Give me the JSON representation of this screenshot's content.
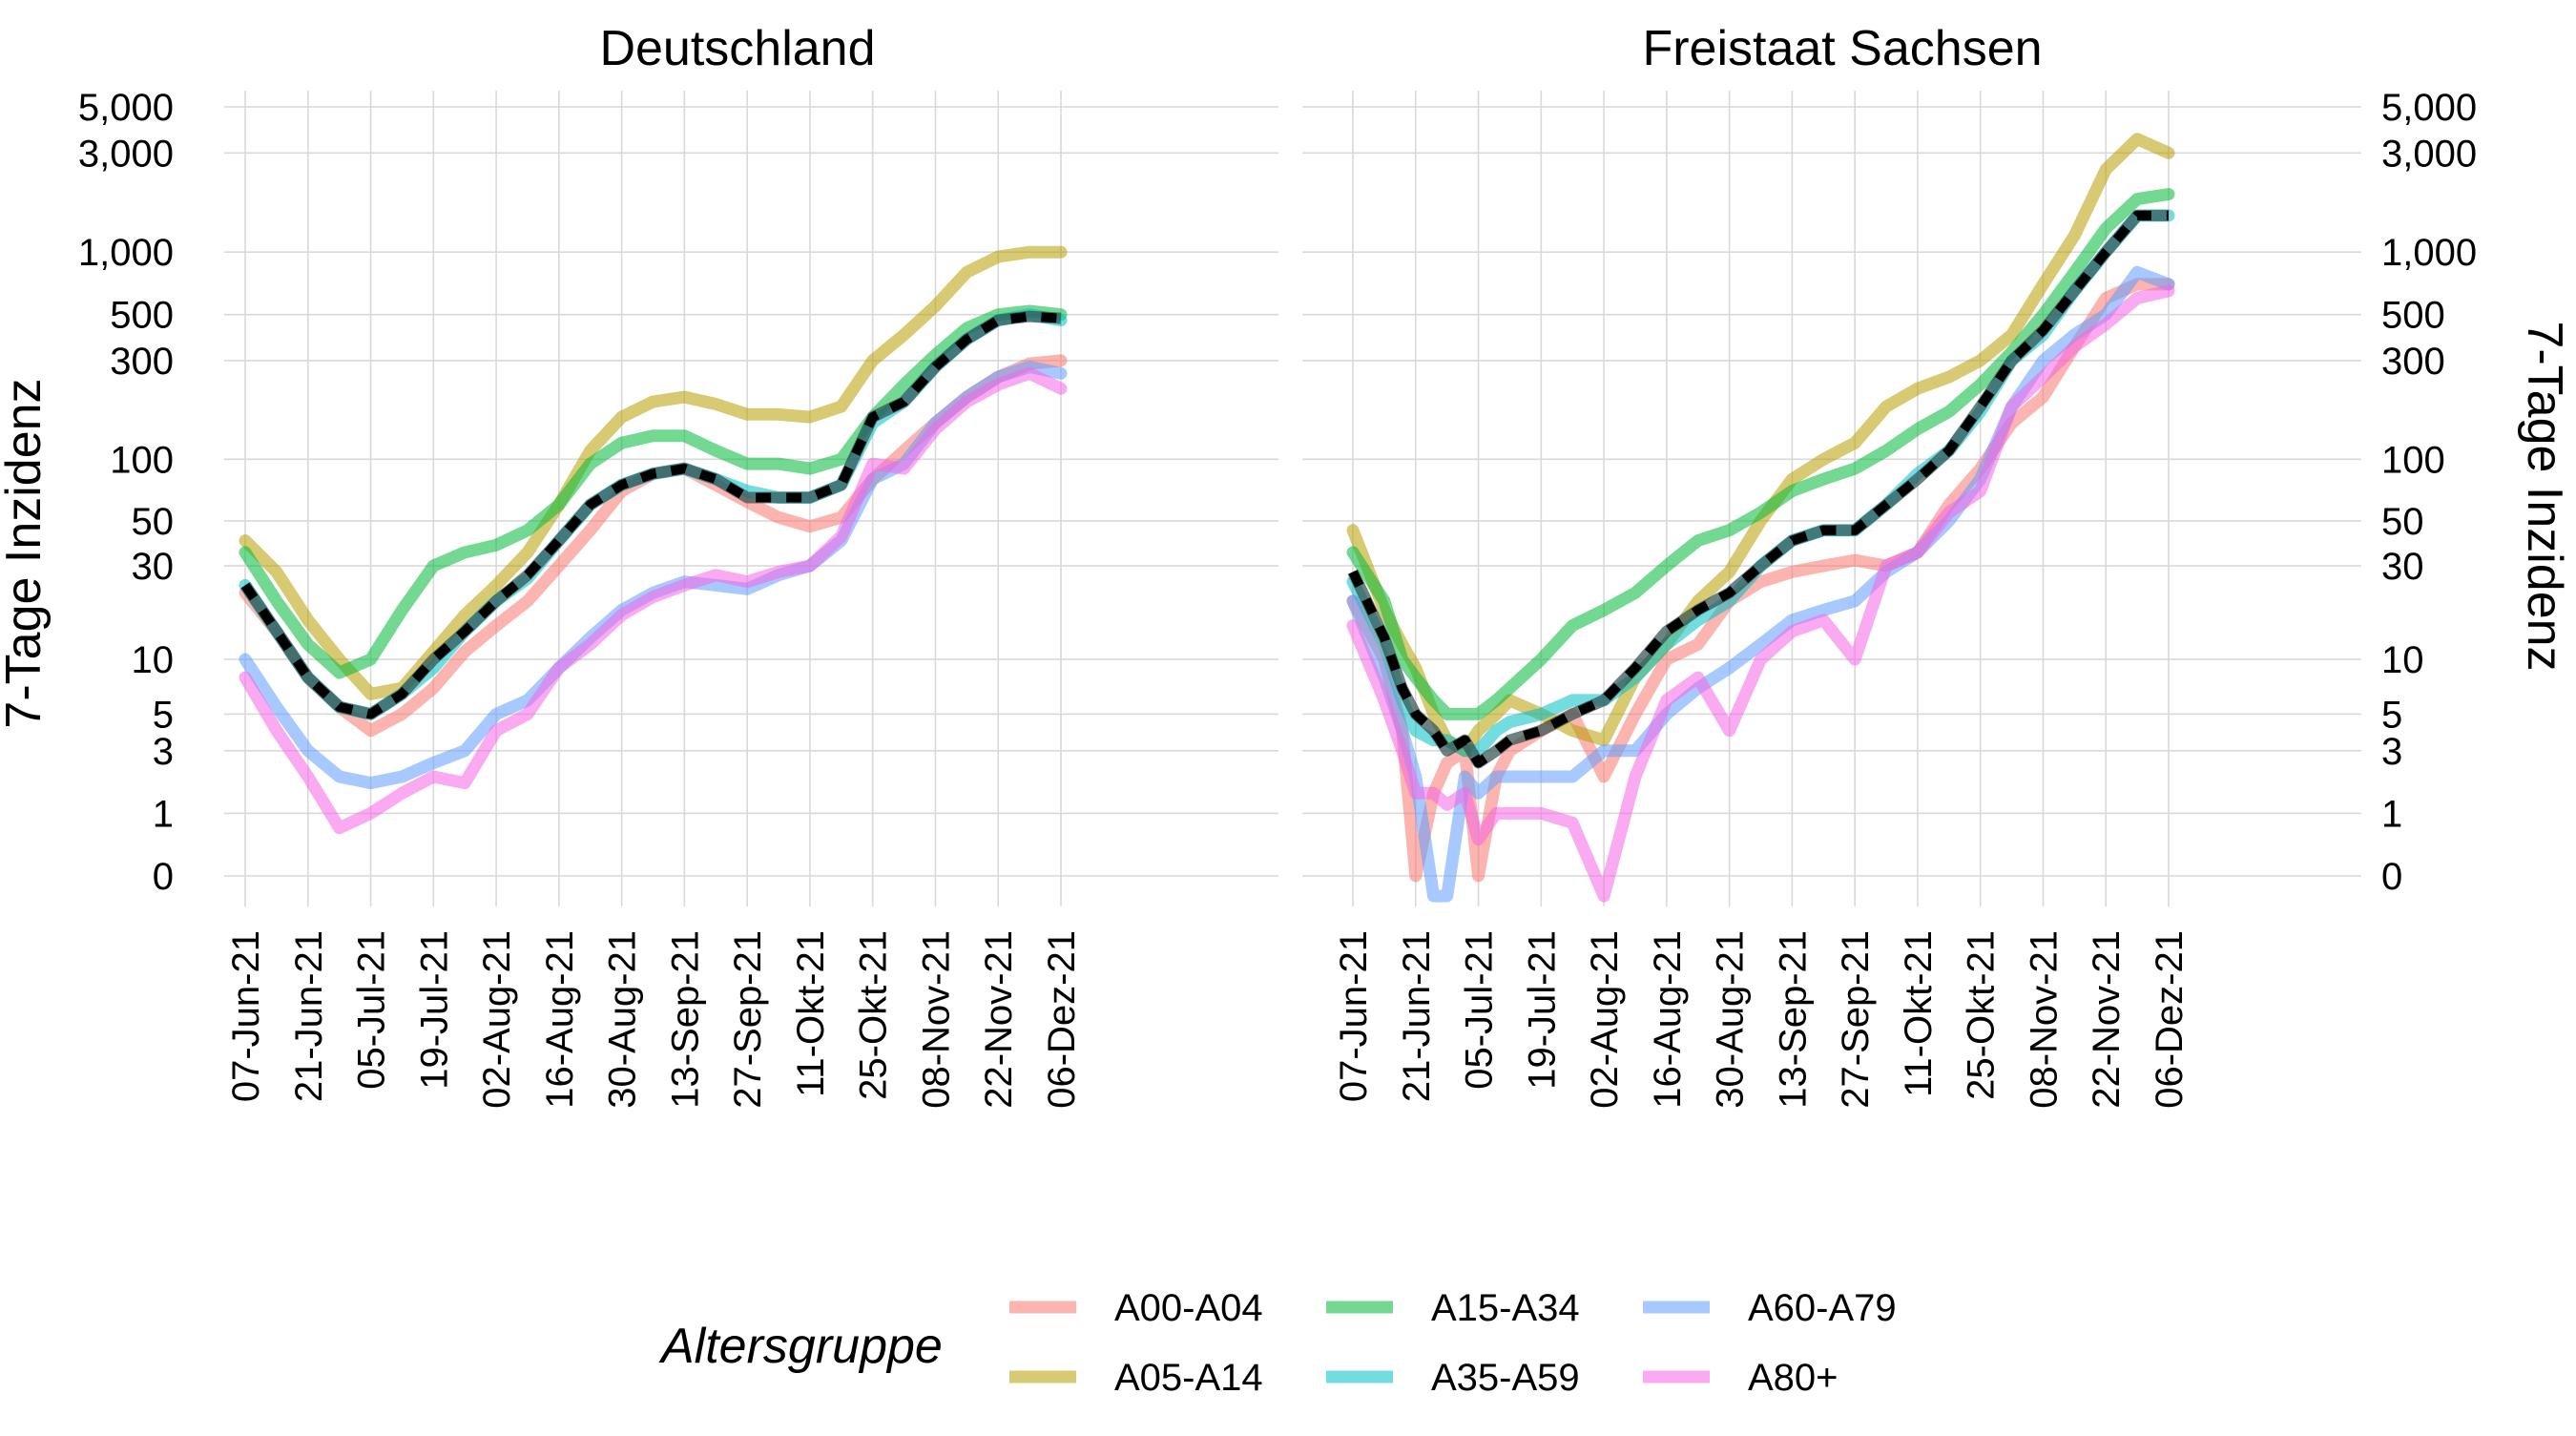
{
  "figure": {
    "legend_title": "Altersgruppe",
    "y_axis_label": "7-Tage Inzidenz"
  },
  "legend": [
    {
      "key": "A00-A04",
      "label": "A00-A04",
      "color": "#F8766D"
    },
    {
      "key": "A05-A14",
      "label": "A05-A14",
      "color": "#B79F00"
    },
    {
      "key": "A15-A34",
      "label": "A15-A34",
      "color": "#00BA38"
    },
    {
      "key": "A35-A59",
      "label": "A35-A59",
      "color": "#00BFC4"
    },
    {
      "key": "A60-A79",
      "label": "A60-A79",
      "color": "#619CFF"
    },
    {
      "key": "A80+",
      "label": "A80+",
      "color": "#F564E3"
    }
  ],
  "colors": {
    "total_line": "#000000",
    "total_underlay": "#2f4f4f",
    "grid": "#d9d9d9"
  },
  "chart_data": [
    {
      "type": "line",
      "title": "Deutschland",
      "ylabel": "7-Tage Inzidenz",
      "y_scale": "log1p",
      "y_ticks": [
        0,
        1,
        3,
        5,
        10,
        30,
        50,
        100,
        300,
        500,
        1000,
        3000,
        5000
      ],
      "y_tick_labels": [
        "0",
        "1",
        "3",
        "5",
        "10",
        "30",
        "50",
        "100",
        "300",
        "500",
        "1,000",
        "3,000",
        "5,000"
      ],
      "ylim": [
        0,
        5000
      ],
      "x_ticks": [
        "07-Jun-21",
        "21-Jun-21",
        "05-Jul-21",
        "19-Jul-21",
        "02-Aug-21",
        "16-Aug-21",
        "30-Aug-21",
        "13-Sep-21",
        "27-Sep-21",
        "11-Okt-21",
        "25-Okt-21",
        "08-Nov-21",
        "22-Nov-21",
        "06-Dez-21"
      ],
      "x": [
        "2021-06-07",
        "2021-06-14",
        "2021-06-21",
        "2021-06-28",
        "2021-07-05",
        "2021-07-12",
        "2021-07-19",
        "2021-07-26",
        "2021-08-02",
        "2021-08-09",
        "2021-08-16",
        "2021-08-23",
        "2021-08-30",
        "2021-09-06",
        "2021-09-13",
        "2021-09-20",
        "2021-09-27",
        "2021-10-04",
        "2021-10-11",
        "2021-10-18",
        "2021-10-25",
        "2021-11-01",
        "2021-11-08",
        "2021-11-15",
        "2021-11-22",
        "2021-11-29",
        "2021-12-06"
      ],
      "grid": true,
      "legend_position": "bottom",
      "series": [
        {
          "name": "A00-A04",
          "values": [
            22,
            14,
            8,
            5.5,
            4,
            5,
            7,
            11,
            15,
            20,
            30,
            45,
            70,
            85,
            90,
            75,
            62,
            52,
            47,
            52,
            80,
            110,
            150,
            200,
            250,
            290,
            300
          ]
        },
        {
          "name": "A05-A14",
          "values": [
            40,
            28,
            16,
            10,
            6.5,
            7,
            11,
            17,
            24,
            35,
            60,
            110,
            160,
            190,
            200,
            185,
            165,
            165,
            160,
            180,
            300,
            400,
            550,
            800,
            950,
            1000,
            1000
          ]
        },
        {
          "name": "A15-A34",
          "values": [
            35,
            20,
            12,
            8.5,
            10,
            18,
            30,
            35,
            38,
            45,
            60,
            95,
            120,
            130,
            130,
            110,
            95,
            95,
            90,
            100,
            160,
            230,
            320,
            430,
            500,
            520,
            500
          ]
        },
        {
          "name": "A35-A59",
          "values": [
            24,
            14,
            8,
            5.5,
            5,
            6.5,
            9,
            14,
            20,
            26,
            40,
            60,
            75,
            85,
            90,
            80,
            70,
            65,
            65,
            75,
            150,
            190,
            280,
            380,
            470,
            500,
            470
          ]
        },
        {
          "name": "A60-A79",
          "values": [
            10,
            5.5,
            3,
            2,
            1.8,
            2,
            2.5,
            3,
            5,
            6,
            9,
            13,
            18,
            22,
            25,
            24,
            23,
            27,
            30,
            40,
            80,
            95,
            150,
            200,
            250,
            280,
            260
          ]
        },
        {
          "name": "A80+",
          "values": [
            8,
            4,
            2,
            0.7,
            1,
            1.5,
            2,
            1.8,
            4,
            5,
            9,
            12,
            17,
            21,
            24,
            27,
            25,
            28,
            30,
            42,
            95,
            90,
            140,
            190,
            230,
            260,
            220
          ]
        },
        {
          "name": "",
          "values": [
            24,
            14,
            8,
            5.5,
            5,
            6.5,
            10,
            14,
            20,
            27,
            40,
            60,
            75,
            85,
            90,
            80,
            65,
            65,
            65,
            75,
            160,
            190,
            280,
            380,
            470,
            490,
            480
          ]
        }
      ]
    },
    {
      "type": "line",
      "title": "Freistaat Sachsen",
      "ylabel": "7-Tage Inzidenz",
      "y_scale": "log1p",
      "y_ticks": [
        0,
        1,
        3,
        5,
        10,
        30,
        50,
        100,
        300,
        500,
        1000,
        3000,
        5000
      ],
      "y_tick_labels": [
        "0",
        "1",
        "3",
        "5",
        "10",
        "30",
        "50",
        "100",
        "300",
        "500",
        "1,000",
        "3,000",
        "5,000"
      ],
      "ylim": [
        0,
        5000
      ],
      "x_ticks": [
        "07-Jun-21",
        "21-Jun-21",
        "05-Jul-21",
        "19-Jul-21",
        "02-Aug-21",
        "16-Aug-21",
        "30-Aug-21",
        "13-Sep-21",
        "27-Sep-21",
        "11-Okt-21",
        "25-Okt-21",
        "08-Nov-21",
        "22-Nov-21",
        "06-Dez-21"
      ],
      "x": [
        "2021-06-07",
        "2021-06-14",
        "2021-06-18",
        "2021-06-21",
        "2021-06-25",
        "2021-06-28",
        "2021-07-02",
        "2021-07-05",
        "2021-07-09",
        "2021-07-12",
        "2021-07-19",
        "2021-07-26",
        "2021-08-02",
        "2021-08-09",
        "2021-08-16",
        "2021-08-23",
        "2021-08-30",
        "2021-09-06",
        "2021-09-13",
        "2021-09-20",
        "2021-09-27",
        "2021-10-04",
        "2021-10-11",
        "2021-10-18",
        "2021-10-25",
        "2021-11-01",
        "2021-11-08",
        "2021-11-15",
        "2021-11-22",
        "2021-11-29",
        "2021-12-06"
      ],
      "grid": true,
      "legend_position": "bottom",
      "series": [
        {
          "name": "A00-A04",
          "values": [
            20,
            10,
            4,
            0,
            1.5,
            2.5,
            3,
            0,
            2,
            3,
            4,
            5,
            2,
            5,
            10,
            12,
            20,
            25,
            28,
            30,
            32,
            30,
            35,
            60,
            90,
            150,
            200,
            350,
            600,
            700,
            700
          ]
        },
        {
          "name": "A05-A14",
          "values": [
            45,
            18,
            12,
            9,
            5,
            3.5,
            3,
            4,
            5,
            6,
            5,
            4,
            3.5,
            8,
            12,
            20,
            28,
            50,
            80,
            100,
            120,
            180,
            220,
            250,
            300,
            400,
            700,
            1200,
            2500,
            3500,
            3000
          ]
        },
        {
          "name": "A15-A34",
          "values": [
            35,
            20,
            10,
            8,
            6,
            5,
            5,
            5,
            6,
            7,
            10,
            15,
            18,
            22,
            30,
            40,
            45,
            55,
            70,
            80,
            90,
            110,
            140,
            170,
            230,
            330,
            500,
            800,
            1300,
            1800,
            1900
          ]
        },
        {
          "name": "A35-A59",
          "values": [
            25,
            12,
            6,
            4,
            3.5,
            3.5,
            3,
            3,
            4,
            4.5,
            5,
            6,
            6,
            8,
            12,
            16,
            20,
            30,
            40,
            45,
            45,
            60,
            85,
            110,
            170,
            300,
            400,
            650,
            1000,
            1500,
            1500
          ]
        },
        {
          "name": "A60-A79",
          "values": [
            20,
            8,
            4,
            2,
            -0.2,
            -0.2,
            2,
            1.5,
            2,
            2,
            2,
            2,
            3,
            3,
            5,
            7,
            9,
            12,
            16,
            18,
            20,
            28,
            35,
            50,
            80,
            180,
            300,
            400,
            500,
            800,
            700
          ]
        },
        {
          "name": "A80+",
          "values": [
            15,
            6,
            3,
            1.5,
            1.5,
            1.2,
            1.5,
            0.5,
            1,
            1,
            1,
            0.8,
            -0.2,
            2,
            6,
            8,
            4,
            10,
            14,
            16,
            10,
            30,
            35,
            55,
            70,
            180,
            250,
            350,
            450,
            600,
            650
          ]
        },
        {
          "name": "",
          "values": [
            28,
            13,
            7,
            5,
            4,
            3,
            3.5,
            2.5,
            3,
            3.5,
            4,
            5,
            6,
            9,
            14,
            18,
            22,
            30,
            40,
            45,
            45,
            60,
            80,
            110,
            180,
            300,
            420,
            650,
            1000,
            1500,
            1500
          ]
        }
      ]
    }
  ]
}
